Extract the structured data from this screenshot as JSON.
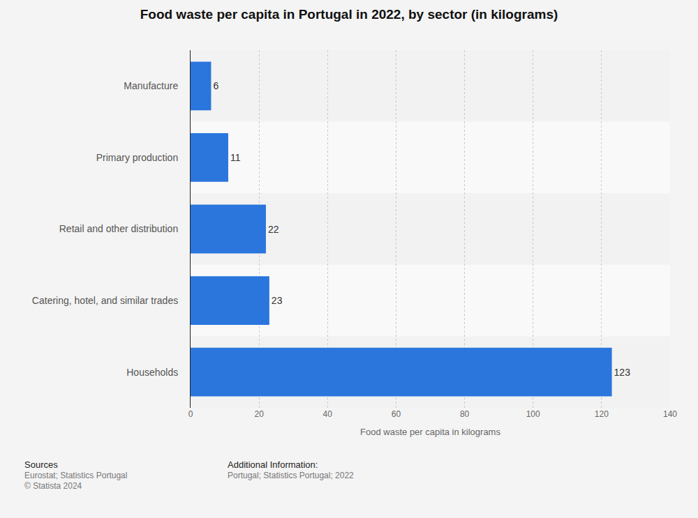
{
  "chart_data": {
    "type": "bar",
    "title": "Food waste per capita in Portugal in 2022, by sector (in kilograms)",
    "orientation": "horizontal",
    "categories": [
      "Manufacture",
      "Primary production",
      "Retail and other distribution",
      "Catering, hotel, and similar trades",
      "Households"
    ],
    "values": [
      6,
      11,
      22,
      23,
      123
    ],
    "color": "#2a76dd",
    "xlabel": "Food waste per capita in kilograms",
    "xlim": [
      0,
      140
    ],
    "xticks": [
      0,
      20,
      40,
      60,
      80,
      100,
      120,
      140
    ],
    "grid": true,
    "data_labels": true,
    "annotations": [
      "Sources",
      "Eurostat; Statistics Portugal",
      "© Statista 2024",
      "Additional Information:",
      "Portugal; Statistics Portugal; 2022"
    ]
  }
}
